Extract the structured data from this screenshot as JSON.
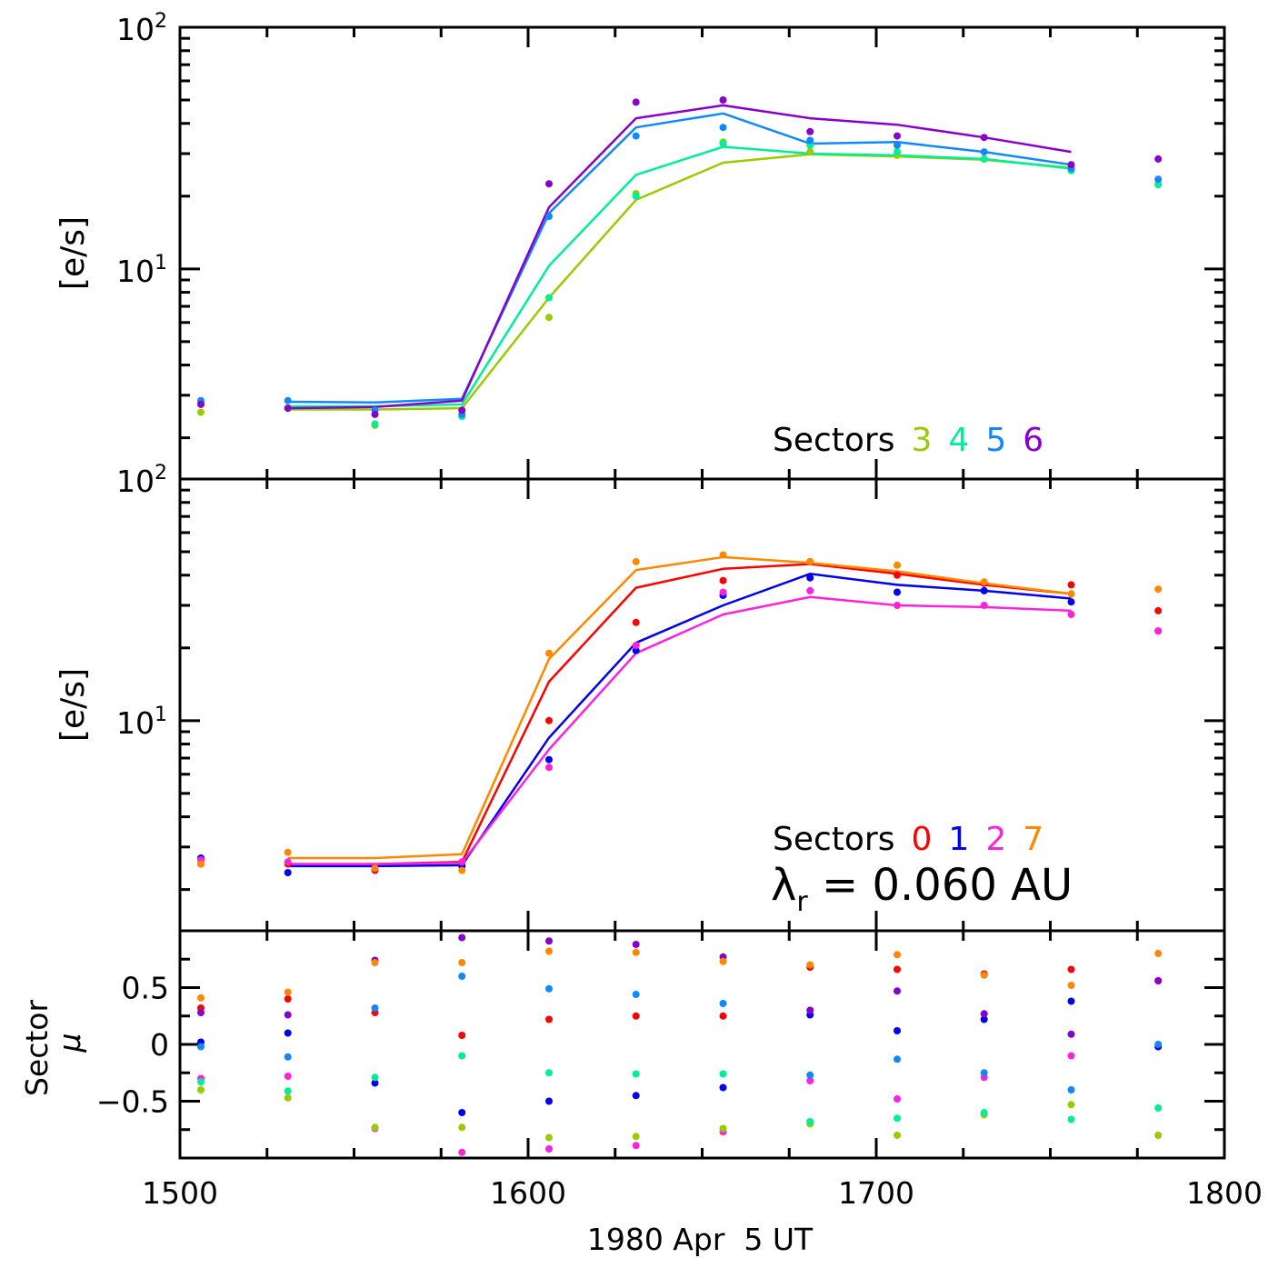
{
  "figure": {
    "xlabel": "1980 Apr  5 UT",
    "x_ticks": [
      "1500",
      "1600",
      "1700",
      "1800"
    ]
  },
  "colors": {
    "s0": "#ff0000",
    "s1": "#0000ee",
    "s2": "#ff22dd",
    "s3": "#99cc00",
    "s4": "#00ee99",
    "s5": "#1188ff",
    "s6": "#8800cc",
    "s7": "#ff8800"
  },
  "chart_data": [
    {
      "type": "line",
      "panel": "top",
      "ylabel": "[e/s]",
      "yscale": "log",
      "ylim": [
        1.35,
        100
      ],
      "xlim": [
        1500,
        1800
      ],
      "y_tick_labels": [
        {
          "value": 100,
          "base": "10",
          "exp": "2"
        },
        {
          "value": 10,
          "base": "10",
          "exp": "1"
        }
      ],
      "legend": {
        "prefix": "Sectors",
        "entries": [
          {
            "label": "3",
            "color": "s3"
          },
          {
            "label": "4",
            "color": "s4"
          },
          {
            "label": "5",
            "color": "s5"
          },
          {
            "label": "6",
            "color": "s6"
          }
        ]
      },
      "x": [
        1506,
        1531,
        1556,
        1581,
        1606,
        1631,
        1656,
        1681,
        1706,
        1731,
        1756,
        1781
      ],
      "lines_x": [
        1531,
        1556,
        1581,
        1606,
        1631,
        1656,
        1681,
        1706,
        1731,
        1756
      ],
      "series": [
        {
          "name": "Sector 3",
          "color": "s3",
          "points": [
            2.55,
            2.65,
            2.25,
            2.5,
            6.3,
            20.5,
            33.5,
            30.5,
            29.5,
            28.5,
            26.5,
            22.5
          ],
          "line": [
            2.62,
            2.62,
            2.65,
            7.6,
            19.3,
            27.5,
            29.8,
            29.2,
            28.3,
            26.2
          ]
        },
        {
          "name": "Sector 4",
          "color": "s4",
          "points": [
            2.8,
            2.65,
            2.28,
            2.45,
            7.6,
            20.0,
            33.0,
            32.5,
            30.5,
            28.5,
            25.5,
            22.3
          ],
          "line": [
            2.7,
            2.7,
            2.75,
            10.3,
            24.5,
            32.0,
            30.0,
            29.5,
            28.5,
            26.0
          ]
        },
        {
          "name": "Sector 5",
          "color": "s5",
          "points": [
            2.85,
            2.85,
            2.6,
            2.5,
            16.5,
            35.5,
            38.5,
            34.0,
            32.5,
            30.5,
            26.0,
            23.5
          ],
          "line": [
            2.82,
            2.8,
            2.9,
            17.0,
            38.5,
            44.0,
            33.0,
            33.5,
            30.5,
            27.0
          ]
        },
        {
          "name": "Sector 6",
          "color": "s6",
          "points": [
            2.75,
            2.65,
            2.5,
            2.6,
            22.5,
            49.0,
            50.0,
            37.0,
            35.5,
            35.0,
            27.0,
            28.5
          ],
          "line": [
            2.65,
            2.68,
            2.85,
            18.0,
            42.0,
            47.5,
            42.0,
            39.5,
            35.0,
            30.5
          ]
        }
      ]
    },
    {
      "type": "line",
      "panel": "middle",
      "ylabel": "[e/s]",
      "yscale": "log",
      "ylim": [
        1.35,
        100
      ],
      "xlim": [
        1500,
        1800
      ],
      "y_tick_labels": [
        {
          "value": 100,
          "base": "10",
          "exp": "2"
        },
        {
          "value": 10,
          "base": "10",
          "exp": "1"
        }
      ],
      "legend": {
        "prefix": "Sectors",
        "entries": [
          {
            "label": "0",
            "color": "s0"
          },
          {
            "label": "1",
            "color": "s1"
          },
          {
            "label": "2",
            "color": "s2"
          },
          {
            "label": "7",
            "color": "s7"
          }
        ]
      },
      "annotation": {
        "lambda": "λ",
        "sub": "r",
        "text": " = 0.060 AU"
      },
      "x": [
        1506,
        1531,
        1556,
        1581,
        1606,
        1631,
        1656,
        1681,
        1706,
        1731,
        1756,
        1781
      ],
      "lines_x": [
        1531,
        1556,
        1581,
        1606,
        1631,
        1656,
        1681,
        1706,
        1731,
        1756
      ],
      "series": [
        {
          "name": "Sector 0",
          "color": "s0",
          "points": [
            2.55,
            2.55,
            2.4,
            2.55,
            10.0,
            25.5,
            38.0,
            45.5,
            40.0,
            37.0,
            36.5,
            28.5
          ],
          "line": [
            2.55,
            2.55,
            2.6,
            14.5,
            35.5,
            42.5,
            44.5,
            40.5,
            36.5,
            33.5
          ]
        },
        {
          "name": "Sector 1",
          "color": "s1",
          "points": [
            2.7,
            2.35,
            2.45,
            2.5,
            6.9,
            19.5,
            33.0,
            39.0,
            34.0,
            34.5,
            31.0,
            23.5
          ],
          "line": [
            2.5,
            2.5,
            2.52,
            8.5,
            21.0,
            30.0,
            40.5,
            36.5,
            34.5,
            32.0
          ]
        },
        {
          "name": "Sector 2",
          "color": "s2",
          "points": [
            2.65,
            2.6,
            2.45,
            2.6,
            6.4,
            20.5,
            34.0,
            34.5,
            30.0,
            30.0,
            27.5,
            23.5
          ],
          "line": [
            2.55,
            2.55,
            2.58,
            7.6,
            19.0,
            27.5,
            32.5,
            30.0,
            29.5,
            28.5
          ]
        },
        {
          "name": "Sector 7",
          "color": "s7",
          "points": [
            2.55,
            2.85,
            2.45,
            2.4,
            19.0,
            45.5,
            48.5,
            45.5,
            44.0,
            37.5,
            33.5,
            35.0
          ],
          "line": [
            2.7,
            2.7,
            2.8,
            18.0,
            42.0,
            47.5,
            45.0,
            41.5,
            37.0,
            33.5
          ]
        }
      ]
    },
    {
      "type": "scatter",
      "panel": "bottom",
      "ylabel": "Sector",
      "ylabel2": "μ",
      "ylim": [
        -1,
        1
      ],
      "xlim": [
        1500,
        1800
      ],
      "y_tick_labels": [
        {
          "value": 0.5,
          "label": "0.5"
        },
        {
          "value": 0,
          "label": "0"
        },
        {
          "value": -0.5,
          "label": "−0.5"
        }
      ],
      "x": [
        1506,
        1531,
        1556,
        1581,
        1606,
        1631,
        1656,
        1681,
        1706,
        1731,
        1756,
        1781
      ],
      "series": [
        {
          "name": "Sector 0",
          "color": "s0",
          "values": [
            0.32,
            0.4,
            0.28,
            0.08,
            0.22,
            0.25,
            0.25,
            0.68,
            0.66,
            0.62,
            0.66,
            -0.02
          ]
        },
        {
          "name": "Sector 1",
          "color": "s1",
          "values": [
            0.02,
            0.1,
            -0.34,
            -0.6,
            -0.5,
            -0.45,
            -0.38,
            0.26,
            0.12,
            0.22,
            0.38,
            -0.02
          ]
        },
        {
          "name": "Sector 2",
          "color": "s2",
          "values": [
            -0.3,
            -0.28,
            -0.74,
            -0.95,
            -0.92,
            -0.89,
            -0.77,
            -0.32,
            -0.48,
            -0.29,
            -0.1,
            0.56
          ]
        },
        {
          "name": "Sector 3",
          "color": "s3",
          "values": [
            -0.4,
            -0.47,
            -0.73,
            -0.73,
            -0.82,
            -0.81,
            -0.74,
            -0.7,
            -0.8,
            -0.62,
            -0.53,
            -0.8
          ]
        },
        {
          "name": "Sector 4",
          "color": "s4",
          "values": [
            -0.33,
            -0.41,
            -0.29,
            -0.1,
            -0.25,
            -0.26,
            -0.26,
            -0.68,
            -0.65,
            -0.6,
            -0.66,
            -0.56
          ]
        },
        {
          "name": "Sector 5",
          "color": "s5",
          "values": [
            -0.02,
            -0.11,
            0.32,
            0.6,
            0.49,
            0.44,
            0.36,
            -0.27,
            -0.13,
            -0.25,
            -0.4,
            0.0
          ]
        },
        {
          "name": "Sector 6",
          "color": "s6",
          "values": [
            0.28,
            0.26,
            0.74,
            0.94,
            0.91,
            0.88,
            0.77,
            0.3,
            0.47,
            0.27,
            0.09,
            0.56
          ]
        },
        {
          "name": "Sector 7",
          "color": "s7",
          "values": [
            0.41,
            0.46,
            0.72,
            0.72,
            0.82,
            0.81,
            0.73,
            0.7,
            0.79,
            0.61,
            0.52,
            0.8
          ]
        }
      ]
    }
  ]
}
